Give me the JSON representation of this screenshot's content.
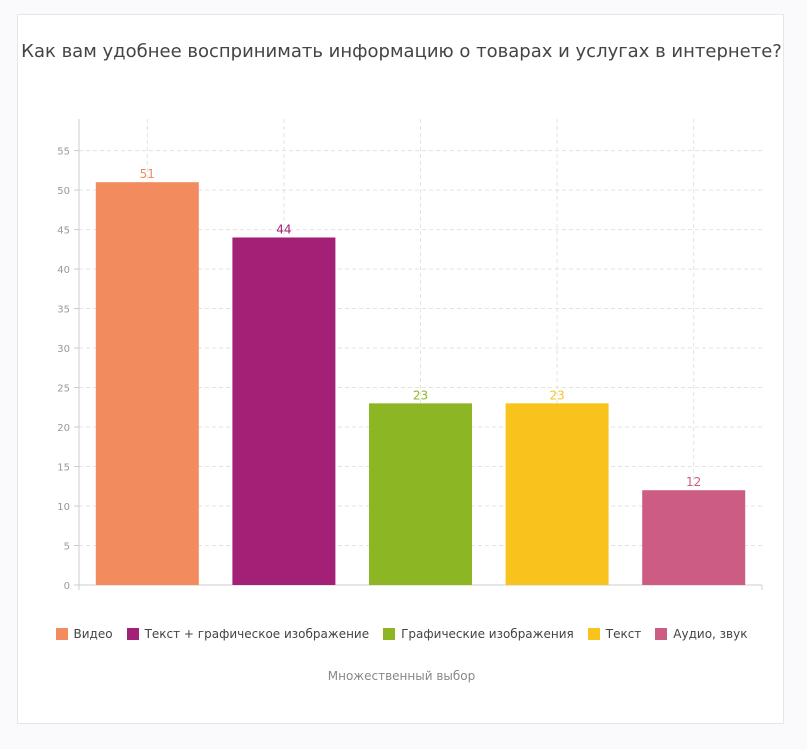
{
  "chart_data": {
    "type": "bar",
    "title": "Как вам удобнее воспринимать информацию о товарах и услугах в интернете?",
    "categories": [
      "Видео",
      "Текст + графическое изображение",
      "Графические изображения",
      "Текст",
      "Аудио, звук"
    ],
    "values": [
      51,
      44,
      23,
      23,
      12
    ],
    "colors": [
      "#f28c5e",
      "#a32077",
      "#8db625",
      "#f9c31e",
      "#cd5c85"
    ],
    "ylim": [
      0,
      59
    ],
    "yticks": [
      0,
      5,
      10,
      15,
      20,
      25,
      30,
      35,
      40,
      45,
      50,
      55
    ],
    "xlabel": "",
    "ylabel": "",
    "grid": true,
    "legend_position": "bottom",
    "footnote": "Множественный выбор"
  }
}
